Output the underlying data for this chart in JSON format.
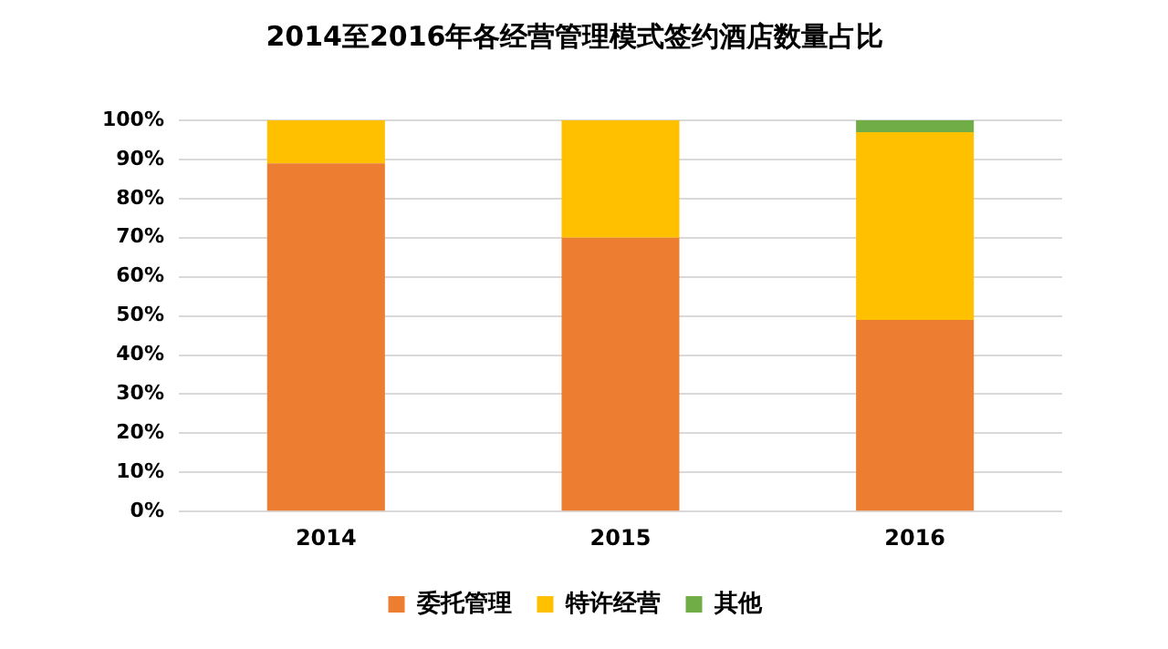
{
  "chart_data": {
    "type": "bar",
    "title": "2014至2016年各经营管理模式签约酒店数量占比",
    "categories": [
      "2014",
      "2015",
      "2016"
    ],
    "stacked": true,
    "series": [
      {
        "name": "委托管理",
        "color": "#ed7d31",
        "values": [
          89,
          70,
          49
        ]
      },
      {
        "name": "特许经营",
        "color": "#ffc000",
        "values": [
          11,
          30,
          48
        ]
      },
      {
        "name": "其他",
        "color": "#70ad47",
        "values": [
          0,
          0,
          3
        ]
      }
    ],
    "ylim": [
      0,
      100
    ],
    "yticks": [
      {
        "value": 0,
        "label": "0%"
      },
      {
        "value": 10,
        "label": "10%"
      },
      {
        "value": 20,
        "label": "20%"
      },
      {
        "value": 30,
        "label": "30%"
      },
      {
        "value": 40,
        "label": "40%"
      },
      {
        "value": 50,
        "label": "50%"
      },
      {
        "value": 60,
        "label": "60%"
      },
      {
        "value": 70,
        "label": "70%"
      },
      {
        "value": 80,
        "label": "80%"
      },
      {
        "value": 90,
        "label": "90%"
      },
      {
        "value": 100,
        "label": "100%"
      }
    ],
    "grid": "y",
    "legend": "bottom"
  }
}
